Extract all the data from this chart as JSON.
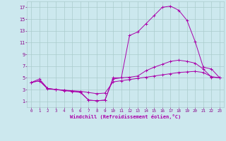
{
  "background_color": "#cce8ee",
  "grid_color": "#aacccc",
  "line_color": "#aa00aa",
  "xlim": [
    -0.5,
    23.5
  ],
  "ylim": [
    0,
    18
  ],
  "xticks": [
    0,
    1,
    2,
    3,
    4,
    5,
    6,
    7,
    8,
    9,
    10,
    11,
    12,
    13,
    14,
    15,
    16,
    17,
    18,
    19,
    20,
    21,
    22,
    23
  ],
  "yticks": [
    1,
    3,
    5,
    7,
    9,
    11,
    13,
    15,
    17
  ],
  "xlabel": "Windchill (Refroidissement éolien,°C)",
  "curve1_x": [
    0,
    1,
    2,
    3,
    4,
    5,
    6,
    7,
    8,
    9,
    10,
    11,
    12,
    13,
    14,
    15,
    16,
    17,
    18,
    19,
    20,
    21,
    22,
    23
  ],
  "curve1_y": [
    4.2,
    4.8,
    3.2,
    3.0,
    2.8,
    2.7,
    2.5,
    1.2,
    1.1,
    1.2,
    5.0,
    5.0,
    12.2,
    12.8,
    14.2,
    15.6,
    17.0,
    17.2,
    16.5,
    14.8,
    11.2,
    6.8,
    6.5,
    5.0
  ],
  "curve2_x": [
    0,
    1,
    2,
    3,
    4,
    5,
    6,
    7,
    8,
    9,
    10,
    11,
    12,
    13,
    14,
    15,
    16,
    17,
    18,
    19,
    20,
    21,
    22,
    23
  ],
  "curve2_y": [
    4.2,
    4.5,
    3.1,
    3.0,
    2.9,
    2.7,
    2.6,
    1.2,
    1.1,
    1.2,
    4.8,
    5.0,
    5.1,
    5.3,
    6.2,
    6.8,
    7.3,
    7.8,
    8.0,
    7.8,
    7.5,
    6.5,
    5.1,
    5.0
  ],
  "curve3_x": [
    0,
    1,
    2,
    3,
    4,
    5,
    6,
    7,
    8,
    9,
    10,
    11,
    12,
    13,
    14,
    15,
    16,
    17,
    18,
    19,
    20,
    21,
    22,
    23
  ],
  "curve3_y": [
    4.2,
    4.5,
    3.2,
    3.0,
    2.9,
    2.8,
    2.7,
    2.5,
    2.3,
    2.4,
    4.3,
    4.5,
    4.7,
    4.9,
    5.1,
    5.3,
    5.5,
    5.7,
    5.9,
    6.0,
    6.1,
    5.9,
    5.2,
    5.0
  ]
}
